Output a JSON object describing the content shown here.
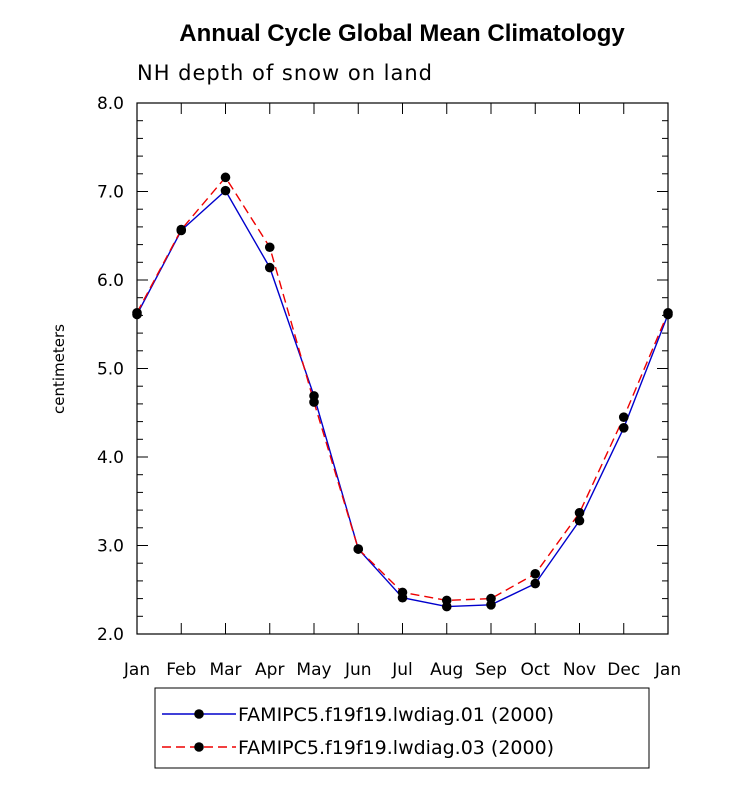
{
  "chart_data": {
    "type": "line",
    "title": "Annual Cycle Global Mean Climatology",
    "subtitle": "NH depth of snow on land",
    "xlabel": "",
    "ylabel": "centimeters",
    "categories": [
      "Jan",
      "Feb",
      "Mar",
      "Apr",
      "May",
      "Jun",
      "Jul",
      "Aug",
      "Sep",
      "Oct",
      "Nov",
      "Dec",
      "Jan"
    ],
    "ylim": [
      2.0,
      8.0
    ],
    "yticks": [
      "2.0",
      "3.0",
      "4.0",
      "5.0",
      "6.0",
      "7.0",
      "8.0"
    ],
    "grid": false,
    "legend_position": "bottom",
    "series": [
      {
        "name": "FAMIPC5.f19f19.lwdiag.01 (2000)",
        "color": "#0000cc",
        "style": "solid",
        "values": [
          5.61,
          6.56,
          7.01,
          6.14,
          4.69,
          2.96,
          2.41,
          2.31,
          2.33,
          2.57,
          3.28,
          4.33,
          5.61
        ]
      },
      {
        "name": "FAMIPC5.f19f19.lwdiag.03 (2000)",
        "color": "#ee0000",
        "style": "dashed",
        "values": [
          5.63,
          6.57,
          7.16,
          6.37,
          4.62,
          2.96,
          2.47,
          2.38,
          2.4,
          2.68,
          3.37,
          4.45,
          5.63
        ]
      }
    ]
  }
}
